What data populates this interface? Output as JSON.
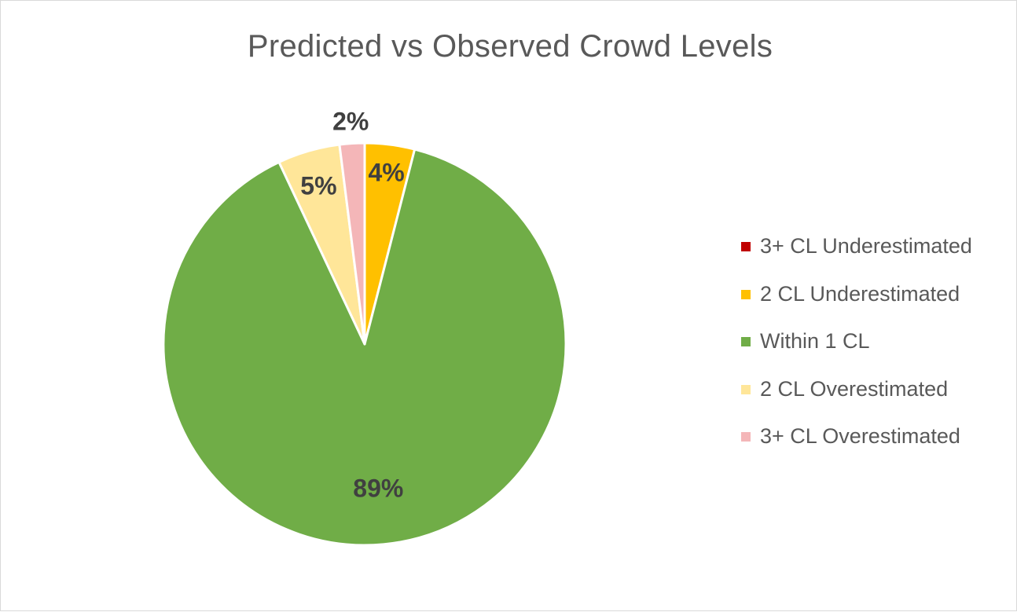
{
  "chart_data": {
    "type": "pie",
    "title": "Predicted vs Observed Crowd Levels",
    "legend_position": "right",
    "slices": [
      {
        "name": "3+ CL Underestimated",
        "value": 0,
        "label": "",
        "color": "#c00000"
      },
      {
        "name": "2 CL Underestimated",
        "value": 4,
        "label": "4%",
        "color": "#ffc000"
      },
      {
        "name": "Within 1 CL",
        "value": 89,
        "label": "89%",
        "color": "#70ad47"
      },
      {
        "name": "2 CL Overestimated",
        "value": 5,
        "label": "5%",
        "color": "#ffe699"
      },
      {
        "name": "3+ CL Overestimated",
        "value": 2,
        "label": "2%",
        "color": "#f4b6b8"
      }
    ]
  }
}
